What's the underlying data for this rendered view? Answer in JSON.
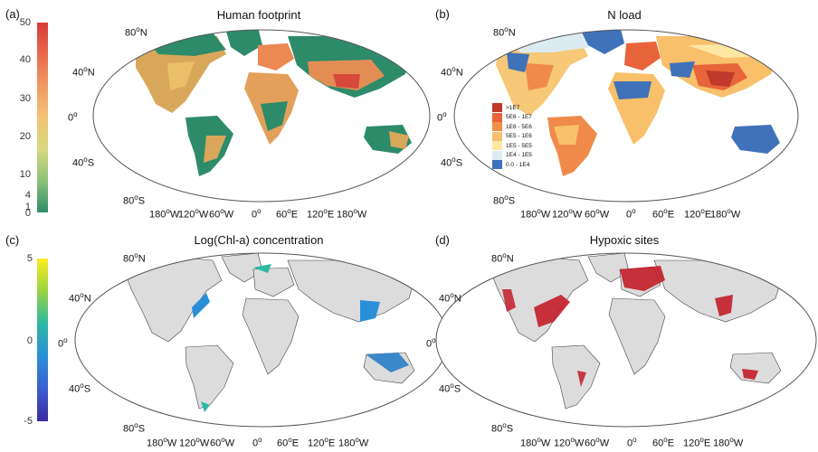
{
  "panels": [
    {
      "letter": "(a)",
      "title": "Human footprint"
    },
    {
      "letter": "(b)",
      "title": "N load"
    },
    {
      "letter": "(c)",
      "title": "Log(Chl-a) concentration"
    },
    {
      "letter": "(d)",
      "title": "Hypoxic sites"
    }
  ],
  "colorbar_a": {
    "ticks": [
      "50",
      "40",
      "30",
      "20",
      "10",
      "4",
      "1",
      "0"
    ],
    "colors": [
      "#d73a3a",
      "#e86a4a",
      "#f09a62",
      "#f2c378",
      "#d8d97e",
      "#8cc27a",
      "#2e8b6a"
    ]
  },
  "colorbar_c": {
    "ticks": [
      "5",
      "0",
      "-5"
    ],
    "colors": [
      "#fbec1e",
      "#9ad243",
      "#2db8a4",
      "#2a8fd6",
      "#3b5fcf",
      "#3c2a9e"
    ]
  },
  "axis_labels": {
    "lat": [
      "80",
      "40",
      "0",
      "40",
      "80"
    ],
    "lat_suffix": [
      "N",
      "N",
      "",
      "S",
      "S"
    ],
    "lon": [
      "180",
      "120",
      "60",
      "0",
      "60",
      "120",
      "180"
    ],
    "lon_suffix": [
      "W",
      "W",
      "W",
      "",
      "E",
      "E",
      "W"
    ]
  },
  "legend_b": [
    {
      "label": ">1E7",
      "color": "#c0392b"
    },
    {
      "label": "5E6 - 1E7",
      "color": "#e8643a"
    },
    {
      "label": "1E6 - 5E6",
      "color": "#f28f4b"
    },
    {
      "label": "5E5 - 1E6",
      "color": "#f8c06a"
    },
    {
      "label": "1E5 - 5E5",
      "color": "#fde7a3"
    },
    {
      "label": "1E4 - 1E5",
      "color": "#dcebf2"
    },
    {
      "label": "0.0 - 1E4",
      "color": "#3f72b8"
    }
  ],
  "colors": {
    "land_gray": "#dcdcdc",
    "green": "#2e8b6a",
    "ocean": "#ffffff",
    "hypoxic": "#c1121f"
  }
}
